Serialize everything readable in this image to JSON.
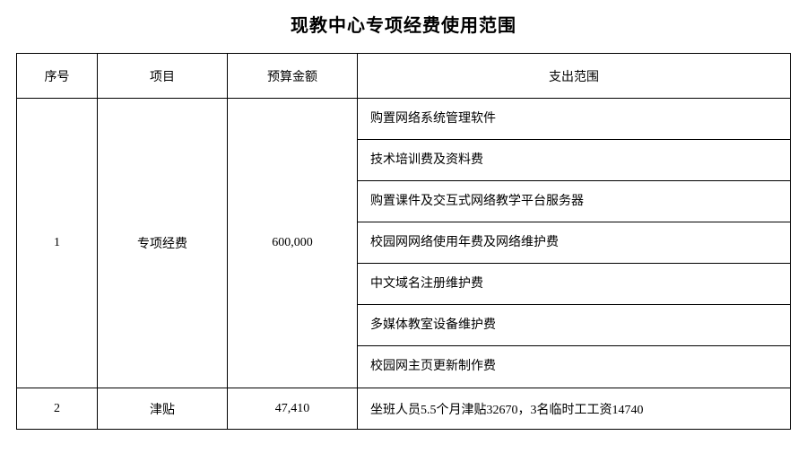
{
  "title": "现教中心专项经费使用范围",
  "columns": {
    "seq": "序号",
    "item": "项目",
    "budget": "预算金额",
    "scope": "支出范围"
  },
  "rows": [
    {
      "seq": "1",
      "item": "专项经费",
      "budget": "600,000",
      "scopes": [
        "购置网络系统管理软件",
        "技术培训费及资料费",
        "购置课件及交互式网络教学平台服务器",
        "校园网网络使用年费及网络维护费",
        "中文域名注册维护费",
        "多媒体教室设备维护费",
        "校园网主页更新制作费"
      ]
    },
    {
      "seq": "2",
      "item": "津贴",
      "budget": "47,410",
      "scopes": [
        "坐班人员5.5个月津贴32670，3名临时工工资14740"
      ]
    }
  ],
  "style": {
    "page_bg": "#ffffff",
    "border_color": "#000000",
    "text_color": "#000000",
    "title_fontsize": 20,
    "cell_fontsize": 14,
    "header_row_height": 50,
    "scope_row_height": 46
  }
}
